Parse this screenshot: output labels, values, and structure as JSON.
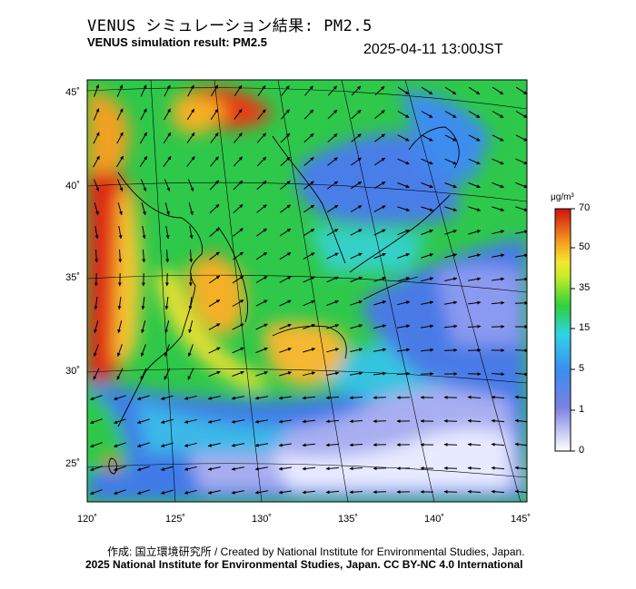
{
  "header": {
    "title_jp": "VENUS シミュレーション結果: PM2.5",
    "title_en": "VENUS simulation result: PM2.5",
    "timestamp": "2025-04-11 13:00JST"
  },
  "map": {
    "latitude_labels": [
      "45˚",
      "40˚",
      "35˚",
      "30˚",
      "25˚"
    ],
    "longitude_labels": [
      "120˚",
      "125˚",
      "130˚",
      "135˚",
      "140˚",
      "145˚"
    ]
  },
  "colorbar": {
    "unit": "μg/m³",
    "ticks": [
      "70",
      "50",
      "35",
      "15",
      "5",
      "1",
      "0"
    ],
    "colors": [
      "#ffffff",
      "#7a82e0",
      "#3c8cf0",
      "#30d2e6",
      "#2ed23a",
      "#f2e830",
      "#f5a020",
      "#e83018",
      "#d01010"
    ]
  },
  "footer": {
    "credit_line_1": "作成: 国立環境研究所 / Created by National Institute for Environmental Studies, Japan.",
    "credit_line_2": "2025 National Institute for Environmental Studies, Japan. CC BY-NC 4.0 International"
  }
}
